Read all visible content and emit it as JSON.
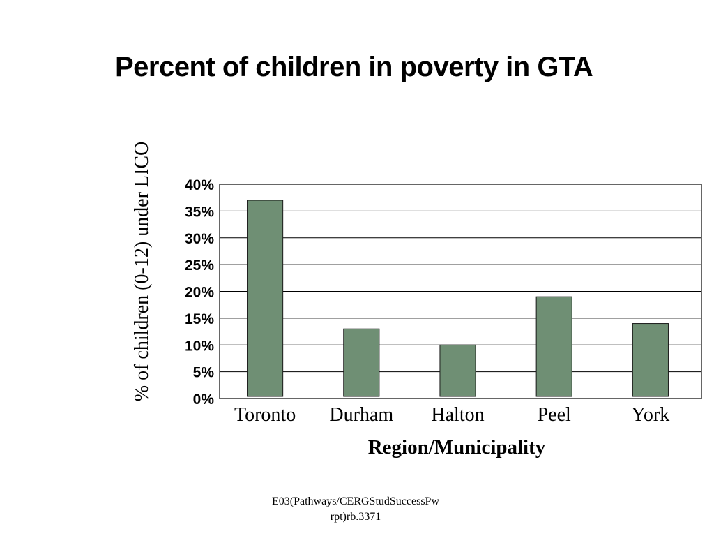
{
  "slide": {
    "footer_line1": "E03(Pathways/CERGStudSuccessPw",
    "footer_line2": "rpt)rb.3371"
  },
  "colors": {
    "bar_fill": "#6f8f74",
    "bar_stroke": "#1a1a1a",
    "grid": "#000000",
    "text": "#000000"
  },
  "chart_data": {
    "type": "bar",
    "title": "Percent of children in poverty in GTA",
    "xlabel": "Region/Municipality",
    "ylabel": "% of children (0-12) under LICO",
    "categories": [
      "Toronto",
      "Durham",
      "Halton",
      "Peel",
      "York"
    ],
    "values": [
      37,
      13,
      10,
      19,
      14
    ],
    "ylim": [
      0,
      40
    ],
    "yticks": [
      0,
      5,
      10,
      15,
      20,
      25,
      30,
      35,
      40
    ],
    "ytick_labels": [
      "0%",
      "5%",
      "10%",
      "15%",
      "20%",
      "25%",
      "30%",
      "35%",
      "40%"
    ],
    "grid": true,
    "legend": "none"
  }
}
